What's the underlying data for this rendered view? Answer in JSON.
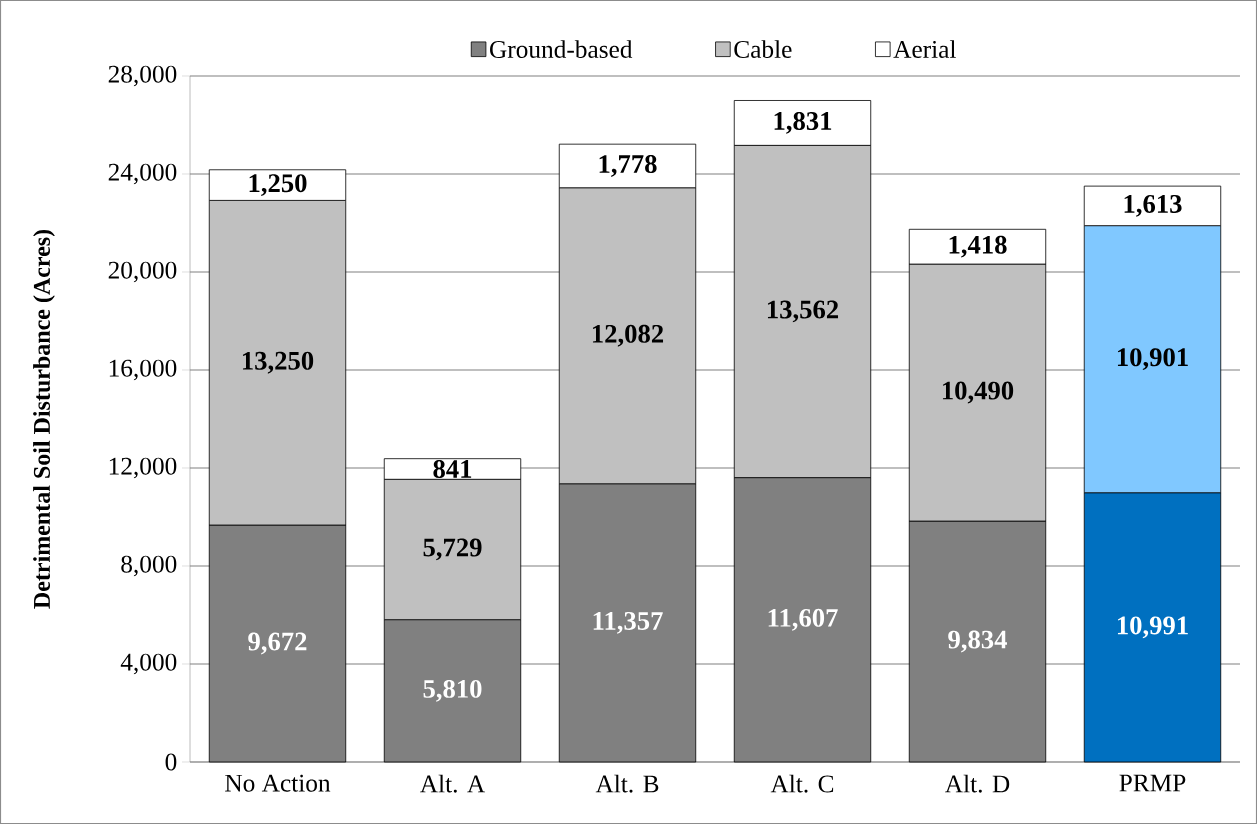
{
  "chart_data": {
    "type": "bar",
    "stacked": true,
    "ylabel": "Detrimental Soil Disturbance (Acres)",
    "categories": [
      "No Action",
      "Alt. A",
      "Alt. B",
      "Alt. C",
      "Alt. D",
      "PRMP"
    ],
    "series": [
      {
        "name": "Ground-based",
        "color": "#808080",
        "colors": [
          "#808080",
          "#808080",
          "#808080",
          "#808080",
          "#808080",
          "#0070c0"
        ],
        "values": [
          9672,
          5810,
          11357,
          11607,
          9834,
          10991
        ],
        "value_labels": [
          "9,672",
          "5,810",
          "11,357",
          "11,607",
          "9,834",
          "10,991"
        ]
      },
      {
        "name": "Cable",
        "color": "#c0c0c0",
        "colors": [
          "#c0c0c0",
          "#c0c0c0",
          "#c0c0c0",
          "#c0c0c0",
          "#c0c0c0",
          "#80c8ff"
        ],
        "values": [
          13250,
          5729,
          12082,
          13562,
          10490,
          10901
        ],
        "value_labels": [
          "13,250",
          "5,729",
          "12,082",
          "13,562",
          "10,490",
          "10,901"
        ]
      },
      {
        "name": "Aerial",
        "color": "#ffffff",
        "colors": [
          "#ffffff",
          "#ffffff",
          "#ffffff",
          "#ffffff",
          "#ffffff",
          "#ffffff"
        ],
        "values": [
          1250,
          841,
          1778,
          1831,
          1418,
          1613
        ],
        "value_labels": [
          "1,250",
          "841",
          "1,778",
          "1,831",
          "1,418",
          "1,613"
        ]
      }
    ],
    "ylim": [
      0,
      28000
    ],
    "yticks": [
      0,
      {
        "value": 4000,
        "label": "4,000"
      },
      {
        "value": 8000,
        "label": "8,000"
      },
      {
        "value": 12000,
        "label": "12,000"
      },
      {
        "value": 16000,
        "label": "16,000"
      },
      {
        "value": 20000,
        "label": "20,000"
      },
      {
        "value": 24000,
        "label": "24,000"
      },
      {
        "value": 28000,
        "label": "28,000"
      }
    ],
    "grid": "y",
    "legend": "top"
  }
}
